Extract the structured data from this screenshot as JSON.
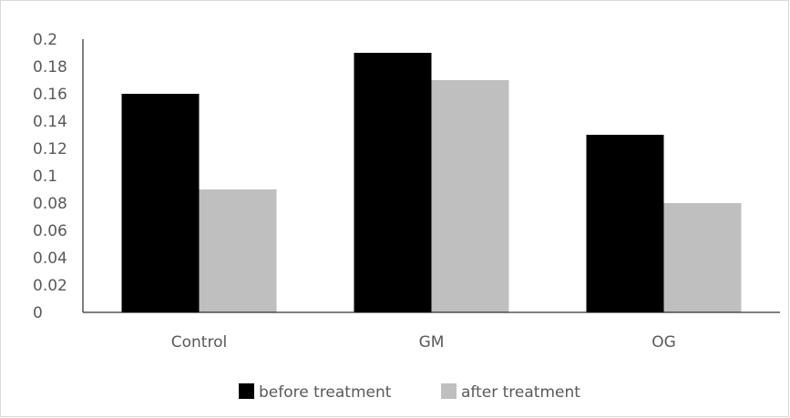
{
  "chart_data": {
    "type": "bar",
    "title": "",
    "xlabel": "",
    "ylabel": "",
    "categories": [
      "Control",
      "GM",
      "OG"
    ],
    "series": [
      {
        "name": "before treatment",
        "values": [
          0.16,
          0.19,
          0.13
        ],
        "color": "#000000"
      },
      {
        "name": "after treatment",
        "values": [
          0.09,
          0.17,
          0.08
        ],
        "color": "#bfbfbf"
      }
    ],
    "ylim": [
      0,
      0.2
    ],
    "yticks": [
      "0",
      "0.02",
      "0.04",
      "0.06",
      "0.08",
      "0.1",
      "0.12",
      "0.14",
      "0.16",
      "0.18",
      "0.2"
    ],
    "grid": false,
    "legend_position": "bottom"
  }
}
